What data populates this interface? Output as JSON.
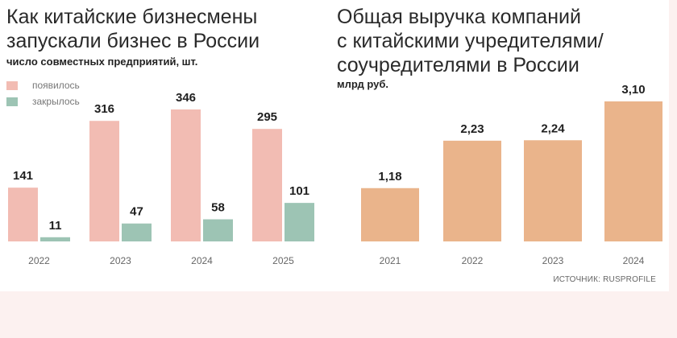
{
  "left": {
    "title": "Как китайские бизнесмены\nзапускали бизнес в России",
    "subtitle": "число совместных предприятий, шт.",
    "legend": [
      {
        "label": "появилось",
        "color": "#f2bcb3"
      },
      {
        "label": "закрылось",
        "color": "#9dc4b4"
      }
    ]
  },
  "right": {
    "title": "Общая выручка компаний\nс китайскими учредителями/\nсоучредителями в России",
    "subtitle": "млрд руб."
  },
  "source": "ИСТОЧНИК: RUSPROFILE",
  "chart_data": [
    {
      "type": "bar",
      "title": "Как китайские бизнесмены запускали бизнес в России",
      "subtitle": "число совместных предприятий, шт.",
      "categories": [
        "2022",
        "2023",
        "2024",
        "2025"
      ],
      "series": [
        {
          "name": "появилось",
          "values": [
            141,
            316,
            346,
            295
          ],
          "labels": [
            "141",
            "316",
            "346",
            "295"
          ],
          "color": "#f2bcb3"
        },
        {
          "name": "закрылось",
          "values": [
            11,
            47,
            58,
            101
          ],
          "labels": [
            "11",
            "47",
            "58",
            "101"
          ],
          "color": "#9dc4b4"
        }
      ],
      "ylim": [
        0,
        346
      ],
      "grid": false,
      "legend": "top-left"
    },
    {
      "type": "bar",
      "title": "Общая выручка компаний с китайскими учредителями/соучредителями в России",
      "subtitle": "млрд руб.",
      "categories": [
        "2021",
        "2022",
        "2023",
        "2024"
      ],
      "series": [
        {
          "values": [
            1.18,
            2.23,
            2.24,
            3.1
          ],
          "labels": [
            "1,18",
            "2,23",
            "2,24",
            "3,10"
          ],
          "color": "#eab48b"
        }
      ],
      "ylim": [
        0,
        3.1
      ],
      "grid": false
    }
  ]
}
